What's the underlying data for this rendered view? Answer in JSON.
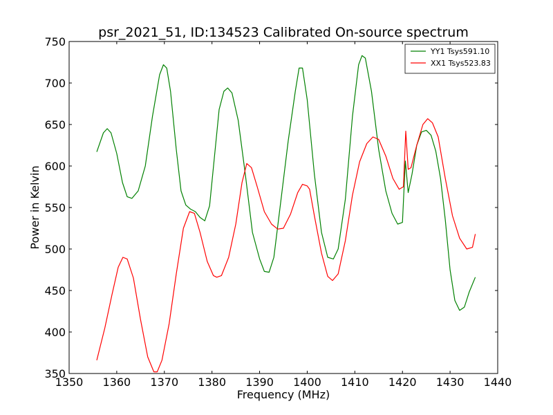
{
  "chart_data": {
    "type": "line",
    "title": "psr_2021_51, ID:134523 Calibrated On-source spectrum",
    "xlabel": "Frequency (MHz)",
    "ylabel": "Power in Kelvin",
    "xlim": [
      1350,
      1440
    ],
    "ylim": [
      350,
      750
    ],
    "x_ticks": [
      1350,
      1360,
      1370,
      1380,
      1390,
      1400,
      1410,
      1420,
      1430,
      1440
    ],
    "y_ticks": [
      350,
      400,
      450,
      500,
      550,
      600,
      650,
      700,
      750
    ],
    "grid": false,
    "legend_position": "top-right",
    "series": [
      {
        "name": "YY1 Tsys591.10",
        "color": "#008000",
        "points": [
          [
            1355.8,
            617
          ],
          [
            1357.2,
            640
          ],
          [
            1358.0,
            645
          ],
          [
            1358.8,
            640
          ],
          [
            1360.0,
            615
          ],
          [
            1361.2,
            580
          ],
          [
            1362.2,
            563
          ],
          [
            1363.2,
            561
          ],
          [
            1364.5,
            570
          ],
          [
            1366.0,
            600
          ],
          [
            1367.5,
            660
          ],
          [
            1369.0,
            710
          ],
          [
            1369.8,
            722
          ],
          [
            1370.5,
            718
          ],
          [
            1371.3,
            690
          ],
          [
            1372.5,
            620
          ],
          [
            1373.5,
            570
          ],
          [
            1374.5,
            553
          ],
          [
            1375.5,
            548
          ],
          [
            1376.5,
            545
          ],
          [
            1377.5,
            538
          ],
          [
            1378.5,
            534
          ],
          [
            1379.5,
            552
          ],
          [
            1380.5,
            610
          ],
          [
            1381.5,
            668
          ],
          [
            1382.5,
            690
          ],
          [
            1383.3,
            694
          ],
          [
            1384.2,
            688
          ],
          [
            1385.5,
            655
          ],
          [
            1387.0,
            590
          ],
          [
            1388.5,
            520
          ],
          [
            1390.0,
            488
          ],
          [
            1391.0,
            473
          ],
          [
            1392.0,
            472
          ],
          [
            1393.0,
            490
          ],
          [
            1394.5,
            560
          ],
          [
            1396.0,
            630
          ],
          [
            1397.5,
            690
          ],
          [
            1398.3,
            718
          ],
          [
            1399.0,
            718
          ],
          [
            1400.0,
            680
          ],
          [
            1401.5,
            590
          ],
          [
            1403.0,
            520
          ],
          [
            1404.3,
            490
          ],
          [
            1405.5,
            488
          ],
          [
            1406.5,
            500
          ],
          [
            1408.0,
            560
          ],
          [
            1409.5,
            660
          ],
          [
            1410.8,
            722
          ],
          [
            1411.5,
            733
          ],
          [
            1412.2,
            730
          ],
          [
            1413.5,
            690
          ],
          [
            1415.0,
            620
          ],
          [
            1416.5,
            570
          ],
          [
            1417.8,
            543
          ],
          [
            1419.0,
            530
          ],
          [
            1420.0,
            532
          ],
          [
            1420.6,
            606
          ],
          [
            1421.2,
            568
          ],
          [
            1422.0,
            590
          ],
          [
            1423.0,
            625
          ],
          [
            1424.0,
            641
          ],
          [
            1425.0,
            643
          ],
          [
            1426.0,
            637
          ],
          [
            1427.0,
            618
          ],
          [
            1428.0,
            585
          ],
          [
            1429.0,
            535
          ],
          [
            1430.0,
            475
          ],
          [
            1431.0,
            438
          ],
          [
            1432.0,
            426
          ],
          [
            1433.0,
            430
          ],
          [
            1434.0,
            448
          ],
          [
            1435.3,
            466
          ]
        ]
      },
      {
        "name": "XX1 Tsys523.83",
        "color": "#ff0000",
        "points": [
          [
            1355.8,
            366
          ],
          [
            1357.5,
            405
          ],
          [
            1359.0,
            445
          ],
          [
            1360.3,
            478
          ],
          [
            1361.3,
            490
          ],
          [
            1362.2,
            488
          ],
          [
            1363.5,
            465
          ],
          [
            1365.0,
            415
          ],
          [
            1366.5,
            370
          ],
          [
            1367.8,
            352
          ],
          [
            1368.5,
            352
          ],
          [
            1369.5,
            366
          ],
          [
            1371.0,
            410
          ],
          [
            1372.5,
            470
          ],
          [
            1374.0,
            525
          ],
          [
            1375.3,
            545
          ],
          [
            1376.3,
            543
          ],
          [
            1377.5,
            520
          ],
          [
            1379.0,
            485
          ],
          [
            1380.3,
            468
          ],
          [
            1381.0,
            466
          ],
          [
            1382.0,
            468
          ],
          [
            1383.5,
            490
          ],
          [
            1385.0,
            530
          ],
          [
            1386.3,
            580
          ],
          [
            1387.3,
            603
          ],
          [
            1388.3,
            598
          ],
          [
            1389.5,
            575
          ],
          [
            1391.0,
            545
          ],
          [
            1392.5,
            530
          ],
          [
            1393.8,
            524
          ],
          [
            1395.0,
            525
          ],
          [
            1396.5,
            542
          ],
          [
            1398.0,
            568
          ],
          [
            1399.0,
            578
          ],
          [
            1400.0,
            576
          ],
          [
            1400.5,
            572
          ],
          [
            1401.5,
            540
          ],
          [
            1403.0,
            495
          ],
          [
            1404.3,
            467
          ],
          [
            1405.3,
            462
          ],
          [
            1406.5,
            470
          ],
          [
            1408.0,
            510
          ],
          [
            1409.5,
            565
          ],
          [
            1411.0,
            605
          ],
          [
            1412.5,
            627
          ],
          [
            1413.8,
            635
          ],
          [
            1415.0,
            632
          ],
          [
            1416.5,
            612
          ],
          [
            1418.0,
            585
          ],
          [
            1419.3,
            572
          ],
          [
            1420.2,
            575
          ],
          [
            1420.7,
            642
          ],
          [
            1421.2,
            596
          ],
          [
            1421.8,
            598
          ],
          [
            1423.0,
            625
          ],
          [
            1424.3,
            650
          ],
          [
            1425.3,
            657
          ],
          [
            1426.3,
            652
          ],
          [
            1427.5,
            635
          ],
          [
            1429.0,
            585
          ],
          [
            1430.5,
            540
          ],
          [
            1432.0,
            513
          ],
          [
            1433.5,
            500
          ],
          [
            1434.7,
            502
          ],
          [
            1435.3,
            518
          ]
        ]
      }
    ]
  }
}
